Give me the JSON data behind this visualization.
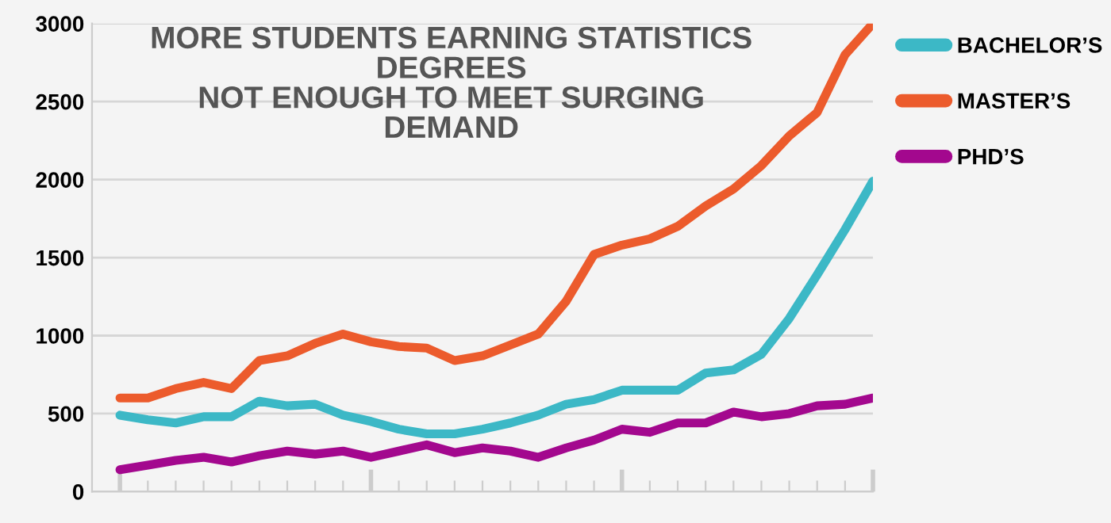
{
  "chart_data": {
    "type": "line",
    "title": "MORE STUDENTS EARNING STATISTICS\nDEGREES\nNOT ENOUGH TO MEET SURGING\nDEMAND",
    "categories": [
      null,
      null,
      null,
      null,
      null,
      null,
      null,
      null,
      null,
      null,
      null,
      null,
      null,
      null,
      null,
      null,
      null,
      null,
      null,
      null,
      null,
      null,
      null,
      null,
      null,
      null,
      null,
      null
    ],
    "series": [
      {
        "name": "BACHELOR’S",
        "color": "#3cb8c6",
        "values": [
          490,
          460,
          440,
          480,
          480,
          580,
          550,
          560,
          490,
          450,
          400,
          370,
          370,
          400,
          440,
          490,
          560,
          590,
          650,
          650,
          650,
          760,
          780,
          880,
          1110,
          1390,
          1680,
          1990
        ]
      },
      {
        "name": "MASTER’S",
        "color": "#ec5b2c",
        "values": [
          600,
          600,
          660,
          700,
          660,
          840,
          870,
          950,
          1010,
          960,
          930,
          920,
          840,
          870,
          940,
          1010,
          1220,
          1520,
          1580,
          1620,
          1700,
          1830,
          1940,
          2090,
          2280,
          2430,
          2800,
          3000
        ]
      },
      {
        "name": "PHD’S",
        "color": "#a3088e",
        "values": [
          140,
          170,
          200,
          220,
          190,
          230,
          260,
          240,
          260,
          220,
          260,
          300,
          250,
          280,
          260,
          220,
          280,
          330,
          400,
          380,
          440,
          440,
          510,
          480,
          500,
          550,
          560,
          600
        ]
      }
    ],
    "ylim": [
      0,
      3000
    ],
    "yticks": [
      0,
      500,
      1000,
      1500,
      2000,
      2500,
      3000
    ],
    "grid": "y",
    "legend": "right",
    "marker": "none",
    "line_style": "solid"
  }
}
